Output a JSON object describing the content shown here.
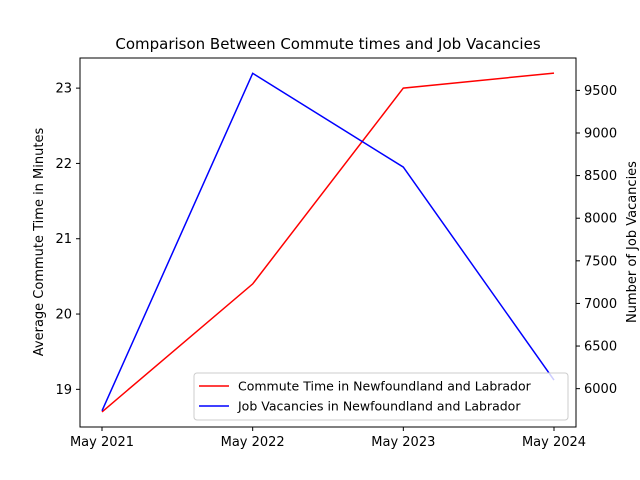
{
  "chart_data": {
    "type": "line",
    "title": "Comparison Between Commute times and Job Vacancies",
    "categories": [
      "May 2021",
      "May 2022",
      "May 2023",
      "May 2024"
    ],
    "y_left": {
      "label": "Average Commute Time in Minutes",
      "range": [
        18.5,
        23.4
      ],
      "ticks": [
        19,
        20,
        21,
        22,
        23
      ]
    },
    "y_right": {
      "label": "Number of Job Vacancies",
      "range": [
        5550,
        9880
      ],
      "ticks": [
        6000,
        6500,
        7000,
        7500,
        8000,
        8500,
        9000,
        9500
      ]
    },
    "series": [
      {
        "name": "Commute Time in Newfoundland and Labrador",
        "axis": "left",
        "color": "#ff0000",
        "values": [
          18.7,
          20.4,
          23.0,
          23.2
        ]
      },
      {
        "name": "Job Vacancies in Newfoundland and Labrador",
        "axis": "right",
        "color": "#0000ff",
        "values": [
          5740,
          9700,
          8600,
          6100
        ]
      }
    ],
    "legend": "lower-right",
    "grid": false
  }
}
